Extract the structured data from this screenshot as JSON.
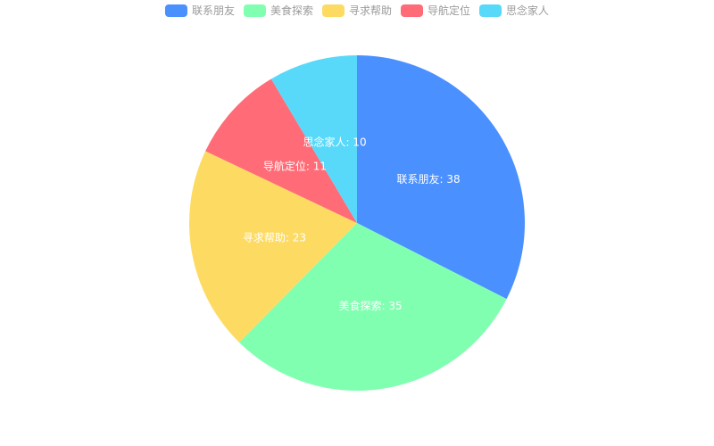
{
  "chart_data": {
    "type": "pie",
    "legend_position": "top-center",
    "series": [
      {
        "name": "联系朋友",
        "value": 38,
        "color": "#4A90FF"
      },
      {
        "name": "美食探索",
        "value": 35,
        "color": "#80FFB0"
      },
      {
        "name": "寻求帮助",
        "value": 23,
        "color": "#FDDB63"
      },
      {
        "name": "导航定位",
        "value": 11,
        "color": "#FF6B76"
      },
      {
        "name": "思念家人",
        "value": 10,
        "color": "#58D9F9"
      }
    ]
  }
}
